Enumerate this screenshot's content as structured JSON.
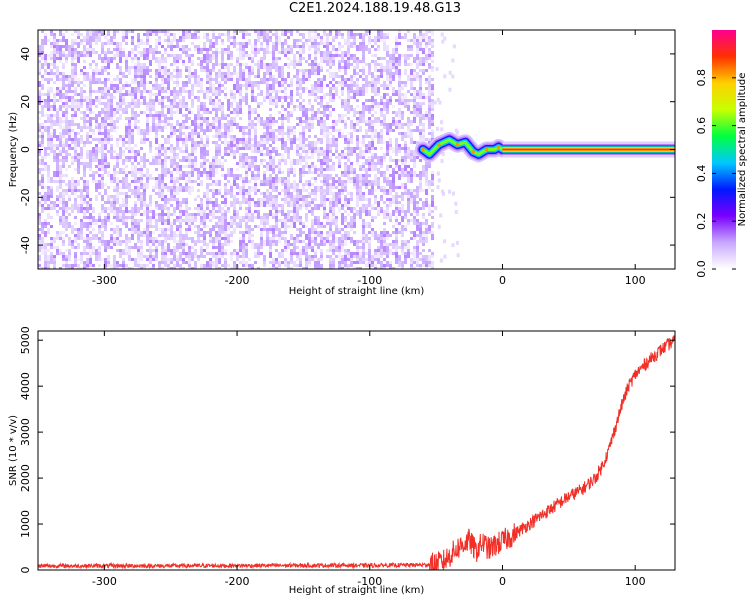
{
  "figure": {
    "title": "C2E1.2024.188.19.48.G13"
  },
  "chart_data": [
    {
      "type": "heatmap",
      "xlabel": "Height of straight line (km)",
      "ylabel": "Frequency (Hz)",
      "xlim": [
        -350,
        130
      ],
      "ylim": [
        -50,
        50
      ],
      "xticks": [
        -300,
        -200,
        -100,
        0,
        100
      ],
      "yticks": [
        -40,
        -20,
        0,
        20,
        40
      ],
      "colorbar": {
        "label": "Normalized spectral amplitude",
        "range": [
          0,
          1
        ],
        "ticks": [
          0.0,
          0.2,
          0.4,
          0.6,
          0.8
        ],
        "colormap": [
          "#ffffff",
          "#c8a8ff",
          "#7a00ff",
          "#0018ff",
          "#00c8ff",
          "#00ff40",
          "#c8ff00",
          "#ffd000",
          "#ff3000",
          "#ff0090"
        ]
      },
      "regions": {
        "noise": {
          "x": [
            -350,
            -52
          ],
          "y": [
            -50,
            50
          ],
          "amplitude_range": [
            0.02,
            0.14
          ]
        },
        "wobbly_trace": {
          "points": [
            [
              -60,
              0
            ],
            [
              -55,
              -2
            ],
            [
              -48,
              2
            ],
            [
              -40,
              4
            ],
            [
              -34,
              2
            ],
            [
              -28,
              3
            ],
            [
              -22,
              -1
            ],
            [
              -18,
              -2
            ],
            [
              -12,
              0
            ],
            [
              -6,
              0
            ],
            [
              -3,
              1
            ],
            [
              0,
              0
            ]
          ],
          "amplitude": 0.55
        },
        "steady_line": {
          "x": [
            0,
            130
          ],
          "frequency": 0,
          "amplitude": 0.9
        }
      },
      "grid": false
    },
    {
      "type": "line",
      "xlabel": "Height of straight line (km)",
      "ylabel": "SNR (10 * v/v)",
      "xlim": [
        -350,
        130
      ],
      "ylim": [
        0,
        5200
      ],
      "xticks": [
        -300,
        -200,
        -100,
        0,
        100
      ],
      "yticks": [
        0,
        1000,
        2000,
        3000,
        4000,
        5000
      ],
      "color": "#f03028",
      "grid": false,
      "series": [
        {
          "x": [
            -350,
            -300,
            -250,
            -200,
            -150,
            -100,
            -60,
            -50,
            -45,
            -40,
            -35,
            -30,
            -25,
            -20,
            -15,
            -10,
            -5,
            0,
            10,
            20,
            30,
            40,
            50,
            60,
            70,
            75,
            80,
            85,
            90,
            95,
            100,
            110,
            120,
            130
          ],
          "values": [
            90,
            90,
            90,
            95,
            100,
            100,
            110,
            130,
            180,
            300,
            450,
            550,
            650,
            400,
            600,
            450,
            550,
            620,
            800,
            1000,
            1200,
            1400,
            1600,
            1750,
            2000,
            2250,
            2600,
            3100,
            3600,
            4000,
            4250,
            4550,
            4800,
            5000
          ]
        }
      ]
    }
  ]
}
